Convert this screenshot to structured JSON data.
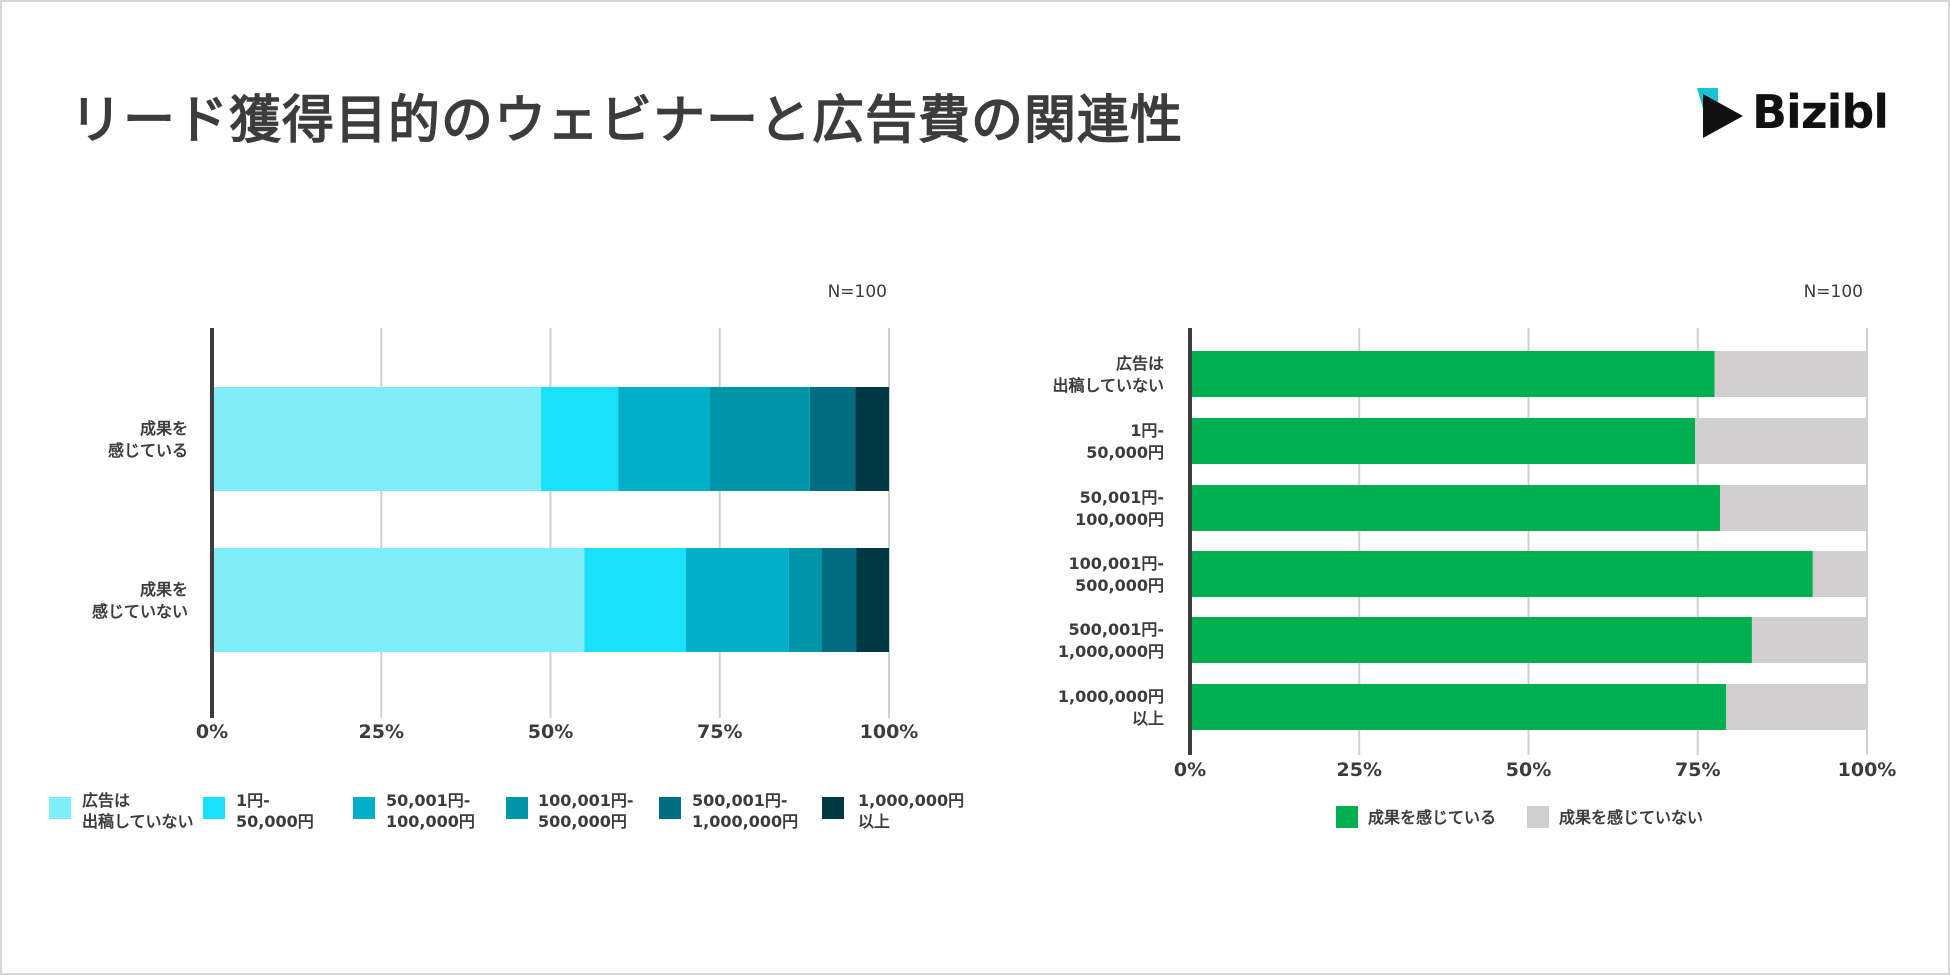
{
  "title": "リード獲得目的のウェビナーと広告費の関連性",
  "logo": {
    "name": "Bizibl"
  },
  "chart_data": [
    {
      "type": "bar",
      "orientation": "horizontal",
      "stacked": true,
      "note": "N=100",
      "categories": [
        [
          "成果を",
          "感じている"
        ],
        [
          "成果を",
          "感じていない"
        ]
      ],
      "xlim": [
        0,
        100
      ],
      "xticks": [
        "0%",
        "25%",
        "50%",
        "75%",
        "100%"
      ],
      "grid": true,
      "legend_position": "bottom",
      "series": [
        {
          "name": "広告は出稿していない",
          "legend": [
            "広告は",
            "出稿していない"
          ],
          "color": "#80EEFA",
          "values": [
            48.6,
            55.0
          ]
        },
        {
          "name": "1円-50,000円",
          "legend": [
            "1円-",
            "50,000円"
          ],
          "color": "#19E1FA",
          "values": [
            11.4,
            15.0
          ]
        },
        {
          "name": "50,001円-100,000円",
          "legend": [
            "50,001円-",
            "100,000円"
          ],
          "color": "#00AFC8",
          "values": [
            13.5,
            15.2
          ]
        },
        {
          "name": "100,001円-500,000円",
          "legend": [
            "100,001円-",
            "500,000円"
          ],
          "color": "#0096AA",
          "values": [
            14.8,
            4.8
          ]
        },
        {
          "name": "500,001円-1,000,000円",
          "legend": [
            "500,001円-",
            "1,000,000円"
          ],
          "color": "#006E80",
          "values": [
            6.7,
            5.2
          ]
        },
        {
          "name": "1,000,000円以上",
          "legend": [
            "1,000,000円",
            "以上"
          ],
          "color": "#003944",
          "values": [
            5.0,
            4.8
          ]
        }
      ]
    },
    {
      "type": "bar",
      "orientation": "horizontal",
      "stacked": true,
      "note": "N=100",
      "categories": [
        [
          "広告は",
          "出稿していない"
        ],
        [
          "1円-",
          "50,000円"
        ],
        [
          "50,001円-",
          "100,000円"
        ],
        [
          "100,001円-",
          "500,000円"
        ],
        [
          "500,001円-",
          "1,000,000円"
        ],
        [
          "1,000,000円",
          "以上"
        ]
      ],
      "xlim": [
        0,
        100
      ],
      "xticks": [
        "0%",
        "25%",
        "50%",
        "75%",
        "100%"
      ],
      "grid": true,
      "legend_position": "bottom",
      "series": [
        {
          "name": "成果を感じている",
          "legend": [
            "成果を感じている"
          ],
          "color": "#00B050",
          "values": [
            77.5,
            74.6,
            78.3,
            92.0,
            83.0,
            79.2
          ]
        },
        {
          "name": "成果を感じていない",
          "legend": [
            "成果を感じていない"
          ],
          "color": "#D0CECE",
          "values": [
            22.5,
            25.4,
            21.7,
            8.0,
            17.0,
            20.8
          ]
        }
      ]
    }
  ]
}
